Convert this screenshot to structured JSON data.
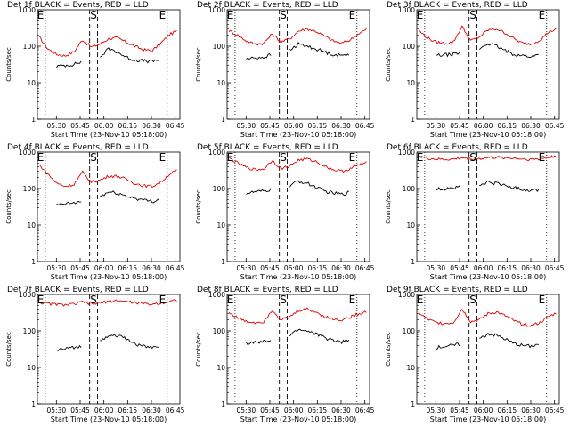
{
  "chart_data": [
    {
      "type": "line",
      "title": "Det 1f BLACK = Events, RED = LLD",
      "xlabel": "Start Time (23-Nov-10 05:18:00)",
      "ylabel": "Counts/sec",
      "yscale": "log",
      "ylim": [
        1,
        1000
      ],
      "x_ticks": [
        "05:30",
        "05:45",
        "06:00",
        "06:15",
        "06:30",
        "06:45"
      ],
      "y_ticks": [
        "1",
        "10",
        "100",
        "1000"
      ],
      "markers": [
        "E",
        "S",
        "E"
      ],
      "series": [
        {
          "name": "LLD",
          "color": "#dd0000",
          "values": [
            180,
            85,
            60,
            55,
            70,
            150,
            95,
            115,
            160,
            170,
            130,
            100,
            80,
            75,
            120,
            210,
            270
          ]
        },
        {
          "name": "Events",
          "color": "#000000",
          "values": [
            null,
            null,
            28,
            30,
            32,
            38,
            null,
            50,
            85,
            70,
            50,
            42,
            40,
            38,
            45,
            null,
            null
          ]
        }
      ]
    },
    {
      "type": "line",
      "title": "Det 2f BLACK = Events, RED = LLD",
      "xlabel": "Start Time (23-Nov-10 05:18:00)",
      "ylabel": "Counts/sec",
      "yscale": "log",
      "ylim": [
        1,
        1000
      ],
      "x_ticks": [
        "05:30",
        "05:45",
        "06:00",
        "06:15",
        "06:30",
        "06:45"
      ],
      "y_ticks": [
        "1",
        "10",
        "100",
        "1000"
      ],
      "markers": [
        "E",
        "S",
        "E"
      ],
      "series": [
        {
          "name": "LLD",
          "color": "#dd0000",
          "values": [
            270,
            200,
            140,
            115,
            120,
            220,
            130,
            160,
            260,
            300,
            260,
            190,
            140,
            120,
            150,
            230,
            300
          ]
        },
        {
          "name": "Events",
          "color": "#000000",
          "values": [
            null,
            null,
            45,
            48,
            50,
            60,
            null,
            75,
            115,
            100,
            85,
            70,
            60,
            55,
            65,
            null,
            null
          ]
        }
      ]
    },
    {
      "type": "line",
      "title": "Det 3f BLACK = Events, RED = LLD",
      "xlabel": "Start Time (23-Nov-10 05:18:00)",
      "ylabel": "Counts/sec",
      "yscale": "log",
      "ylim": [
        1,
        1000
      ],
      "x_ticks": [
        "05:30",
        "05:45",
        "06:00",
        "06:15",
        "06:30",
        "06:45"
      ],
      "y_ticks": [
        "1",
        "10",
        "100",
        "1000"
      ],
      "markers": [
        "E",
        "S",
        "E"
      ],
      "series": [
        {
          "name": "LLD",
          "color": "#dd0000",
          "values": [
            270,
            170,
            130,
            120,
            130,
            350,
            140,
            180,
            280,
            300,
            230,
            160,
            120,
            115,
            150,
            250,
            300
          ]
        },
        {
          "name": "Events",
          "color": "#000000",
          "values": [
            null,
            null,
            55,
            58,
            60,
            65,
            null,
            85,
            120,
            100,
            75,
            60,
            55,
            52,
            60,
            null,
            null
          ]
        }
      ]
    },
    {
      "type": "line",
      "title": "Det 4f BLACK = Events, RED = LLD",
      "xlabel": "Start Time (23-Nov-10 05:18:00)",
      "ylabel": "Counts/sec",
      "yscale": "log",
      "ylim": [
        1,
        1000
      ],
      "x_ticks": [
        "05:30",
        "05:45",
        "06:00",
        "06:15",
        "06:30",
        "06:45"
      ],
      "y_ticks": [
        "1",
        "10",
        "100",
        "1000"
      ],
      "markers": [
        "E",
        "S",
        "E"
      ],
      "series": [
        {
          "name": "LLD",
          "color": "#dd0000",
          "values": [
            450,
            250,
            140,
            115,
            130,
            280,
            150,
            170,
            220,
            220,
            180,
            140,
            120,
            115,
            150,
            250,
            320
          ]
        },
        {
          "name": "Events",
          "color": "#000000",
          "values": [
            null,
            null,
            35,
            38,
            40,
            45,
            null,
            60,
            80,
            75,
            62,
            55,
            48,
            45,
            50,
            null,
            null
          ]
        }
      ]
    },
    {
      "type": "line",
      "title": "Det 5f BLACK = Events, RED = LLD",
      "xlabel": "Start Time (23-Nov-10 05:18:00)",
      "ylabel": "Counts/sec",
      "yscale": "log",
      "ylim": [
        1,
        1000
      ],
      "x_ticks": [
        "05:30",
        "05:45",
        "06:00",
        "06:15",
        "06:30",
        "06:45"
      ],
      "y_ticks": [
        "1",
        "10",
        "100",
        "1000"
      ],
      "markers": [
        "E",
        "S",
        "E"
      ],
      "series": [
        {
          "name": "LLD",
          "color": "#dd0000",
          "values": [
            700,
            500,
            380,
            330,
            340,
            600,
            350,
            420,
            600,
            650,
            550,
            420,
            330,
            300,
            350,
            450,
            520
          ]
        },
        {
          "name": "Events",
          "color": "#000000",
          "values": [
            null,
            null,
            75,
            80,
            85,
            95,
            null,
            120,
            160,
            140,
            110,
            85,
            75,
            70,
            80,
            null,
            null
          ]
        }
      ]
    },
    {
      "type": "line",
      "title": "Det 6f BLACK = Events, RED = LLD",
      "xlabel": "Start Time (23-Nov-10 05:18:00)",
      "ylabel": "Counts/sec",
      "yscale": "log",
      "ylim": [
        1,
        1000
      ],
      "x_ticks": [
        "05:30",
        "05:45",
        "06:00",
        "06:15",
        "06:30",
        "06:45"
      ],
      "y_ticks": [
        "1",
        "10",
        "100",
        "1000"
      ],
      "markers": [
        "E",
        "S",
        "E"
      ],
      "series": [
        {
          "name": "LLD",
          "color": "#dd0000",
          "values": [
            750,
            680,
            640,
            630,
            640,
            700,
            650,
            660,
            700,
            720,
            700,
            680,
            650,
            640,
            650,
            720,
            800
          ]
        },
        {
          "name": "Events",
          "color": "#000000",
          "values": [
            null,
            null,
            95,
            100,
            105,
            110,
            null,
            120,
            150,
            140,
            120,
            105,
            95,
            90,
            95,
            null,
            null
          ]
        }
      ]
    },
    {
      "type": "line",
      "title": "Det 7f BLACK = Events, RED = LLD",
      "xlabel": "Start Time (23-Nov-10 05:18:00)",
      "ylabel": "Counts/sec",
      "yscale": "log",
      "ylim": [
        1,
        1000
      ],
      "x_ticks": [
        "05:30",
        "05:45",
        "06:00",
        "06:15",
        "06:30",
        "06:45"
      ],
      "y_ticks": [
        "1",
        "10",
        "100",
        "1000"
      ],
      "markers": [
        "E",
        "S",
        "E"
      ],
      "series": [
        {
          "name": "LLD",
          "color": "#dd0000",
          "values": [
            600,
            560,
            540,
            520,
            540,
            620,
            550,
            580,
            650,
            680,
            640,
            600,
            560,
            540,
            580,
            650,
            720
          ]
        },
        {
          "name": "Events",
          "color": "#000000",
          "values": [
            null,
            null,
            30,
            32,
            35,
            40,
            null,
            50,
            80,
            75,
            60,
            45,
            38,
            35,
            40,
            null,
            null
          ]
        }
      ]
    },
    {
      "type": "line",
      "title": "Det 8f BLACK = Events, RED = LLD",
      "xlabel": "Start Time (23-Nov-10 05:18:00)",
      "ylabel": "Counts/sec",
      "yscale": "log",
      "ylim": [
        1,
        1000
      ],
      "x_ticks": [
        "05:30",
        "05:45",
        "06:00",
        "06:15",
        "06:30",
        "06:45"
      ],
      "y_ticks": [
        "1",
        "10",
        "100",
        "1000"
      ],
      "markers": [
        "E",
        "S",
        "E"
      ],
      "series": [
        {
          "name": "LLD",
          "color": "#dd0000",
          "values": [
            320,
            230,
            180,
            170,
            180,
            380,
            200,
            240,
            360,
            400,
            330,
            250,
            210,
            200,
            240,
            300,
            350
          ]
        },
        {
          "name": "Events",
          "color": "#000000",
          "values": [
            null,
            null,
            45,
            48,
            50,
            55,
            null,
            75,
            110,
            100,
            85,
            65,
            55,
            50,
            55,
            null,
            null
          ]
        }
      ]
    },
    {
      "type": "line",
      "title": "Det 9f BLACK = Events, RED = LLD",
      "xlabel": "Start Time (23-Nov-10 05:18:00)",
      "ylabel": "Counts/sec",
      "yscale": "log",
      "ylim": [
        1,
        1000
      ],
      "x_ticks": [
        "05:30",
        "05:45",
        "06:00",
        "06:15",
        "06:30",
        "06:45"
      ],
      "y_ticks": [
        "1",
        "10",
        "100",
        "1000"
      ],
      "markers": [
        "E",
        "S",
        "E"
      ],
      "series": [
        {
          "name": "LLD",
          "color": "#dd0000",
          "values": [
            320,
            210,
            170,
            160,
            170,
            400,
            180,
            200,
            300,
            330,
            260,
            190,
            150,
            140,
            170,
            250,
            320
          ]
        },
        {
          "name": "Events",
          "color": "#000000",
          "values": [
            null,
            null,
            35,
            38,
            40,
            45,
            null,
            60,
            85,
            75,
            60,
            45,
            40,
            38,
            45,
            null,
            null
          ]
        }
      ]
    }
  ]
}
